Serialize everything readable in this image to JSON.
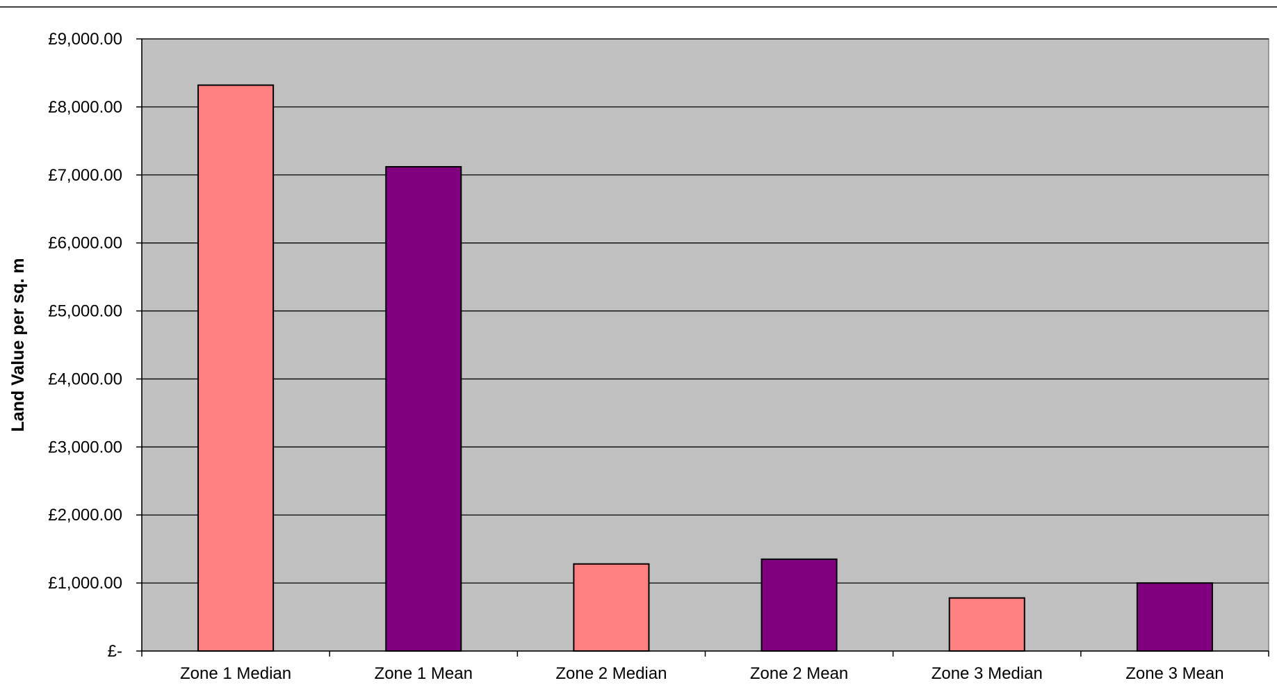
{
  "chart_data": {
    "type": "bar",
    "title": "",
    "xlabel": "",
    "ylabel": "Land Value per sq. m",
    "ylim": [
      0,
      9000
    ],
    "yticks": [
      0,
      1000,
      2000,
      3000,
      4000,
      5000,
      6000,
      7000,
      8000,
      9000
    ],
    "ytick_labels": [
      "£-",
      "£1,000.00",
      "£2,000.00",
      "£3,000.00",
      "£4,000.00",
      "£5,000.00",
      "£6,000.00",
      "£7,000.00",
      "£8,000.00",
      "£9,000.00"
    ],
    "categories": [
      "Zone 1 Median",
      "Zone 1 Mean",
      "Zone 2 Median",
      "Zone 2 Mean",
      "Zone 3 Median",
      "Zone 3 Mean"
    ],
    "values": [
      8320,
      7120,
      1280,
      1350,
      780,
      1000
    ],
    "bar_colors": [
      "#ff8080",
      "#800080",
      "#ff8080",
      "#800080",
      "#ff8080",
      "#800080"
    ],
    "plot_background": "#c0c0c0",
    "grid": true,
    "legend": "none"
  }
}
